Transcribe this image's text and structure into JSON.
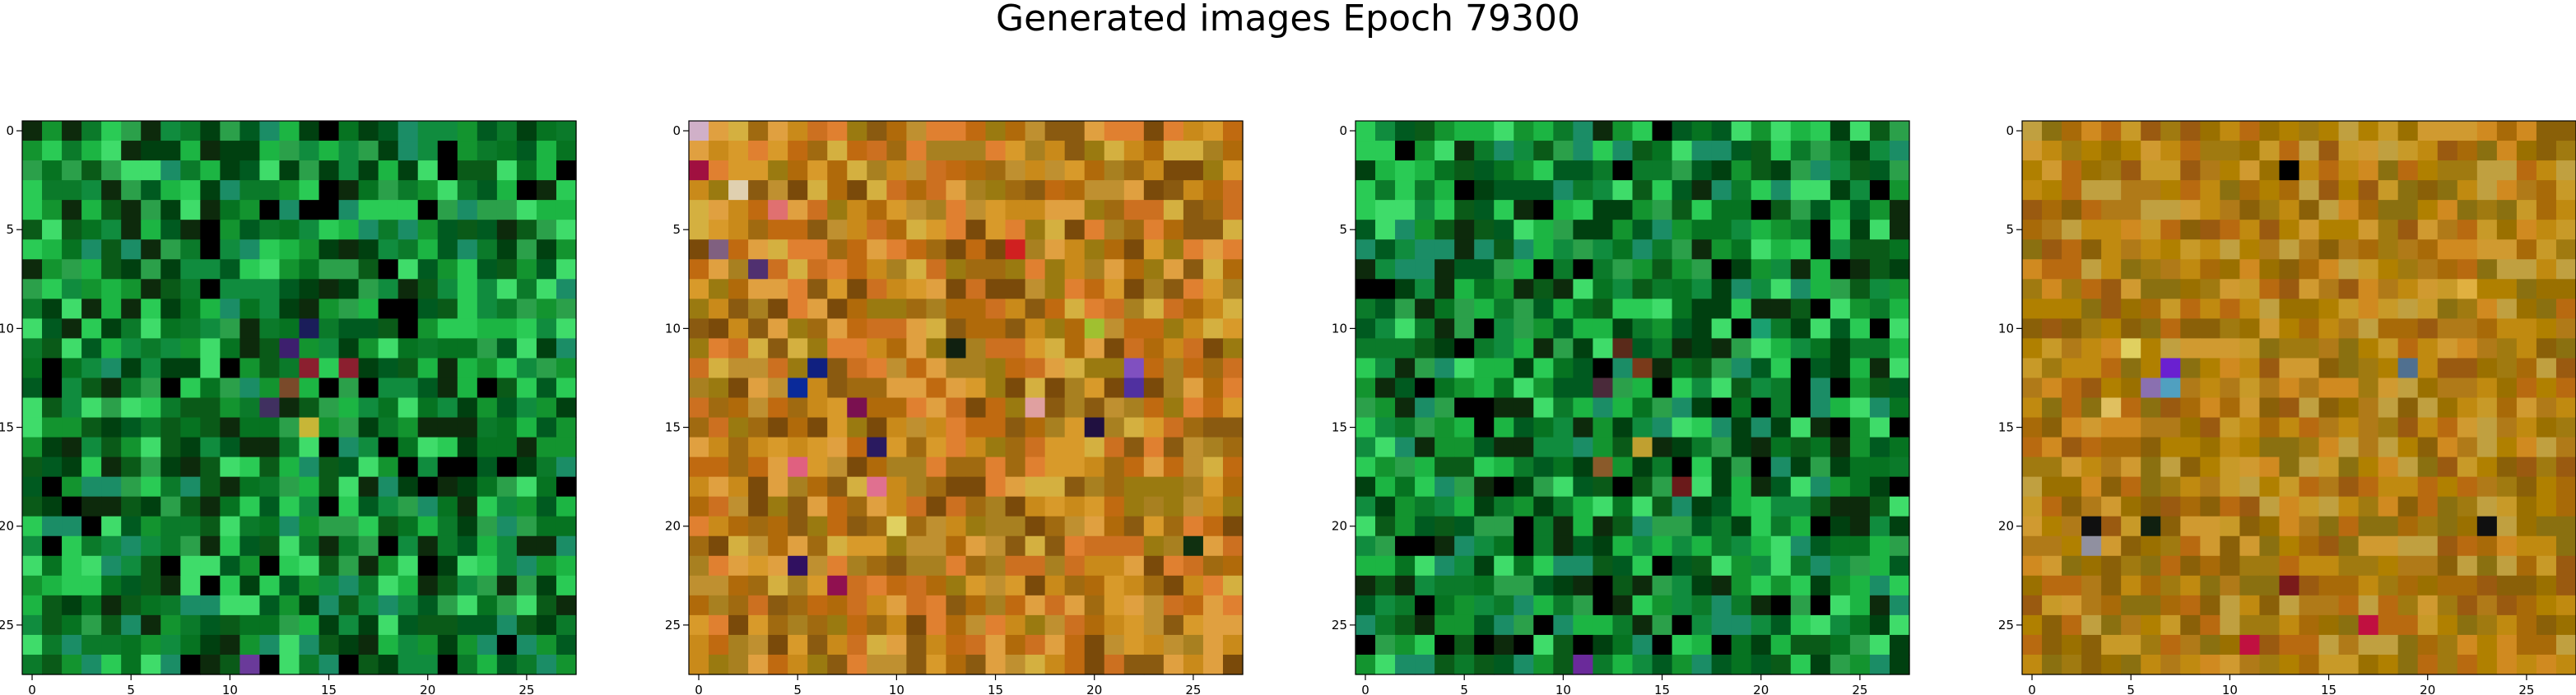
{
  "figure": {
    "title": "Generated images Epoch 79300"
  },
  "chart_data": [
    {
      "type": "heatmap",
      "grid_size": [
        28,
        28
      ],
      "x_ticks": [
        0,
        5,
        10,
        15,
        20,
        25
      ],
      "y_ticks": [
        0,
        5,
        10,
        15,
        20,
        25
      ],
      "xlim": [
        -0.5,
        27.5
      ],
      "ylim": [
        27.5,
        -0.5
      ],
      "grid": false,
      "palette": [
        "#0b7a2a",
        "#13942f",
        "#067321",
        "#1cb543",
        "#0a5a18",
        "#004010",
        "#0d2a0c",
        "#000000",
        "#2acb55",
        "#108c3e",
        "#3fdc6a",
        "#005a20",
        "#1b8d66",
        "#2ba04a"
      ],
      "accent_pixels": [
        [
          10,
          14,
          "#1a1d5a"
        ],
        [
          11,
          13,
          "#3d1f6e"
        ],
        [
          12,
          14,
          "#8b1f2f"
        ],
        [
          13,
          13,
          "#7a4a2a"
        ],
        [
          14,
          12,
          "#403060"
        ],
        [
          15,
          14,
          "#c7b637"
        ],
        [
          12,
          16,
          "#8b1f2f"
        ],
        [
          27,
          11,
          "#6a3a9a"
        ]
      ]
    },
    {
      "type": "heatmap",
      "grid_size": [
        28,
        28
      ],
      "x_ticks": [
        0,
        5,
        10,
        15,
        20,
        25
      ],
      "y_ticks": [
        0,
        5,
        10,
        15,
        20,
        25
      ],
      "xlim": [
        -0.5,
        27.5
      ],
      "ylim": [
        27.5,
        -0.5
      ],
      "grid": false,
      "palette": [
        "#b06a0a",
        "#c98a1a",
        "#a06a10",
        "#d89a2a",
        "#8a5a10",
        "#e0a040",
        "#c06a10",
        "#9a7a10",
        "#d4b040",
        "#e08030",
        "#7a4a0a",
        "#bf9030",
        "#cc7020",
        "#a88020"
      ],
      "accent_pixels": [
        [
          0,
          0,
          "#d0b0c8"
        ],
        [
          2,
          0,
          "#a01040"
        ],
        [
          3,
          2,
          "#e0d0b0"
        ],
        [
          4,
          4,
          "#e07070"
        ],
        [
          6,
          1,
          "#806080"
        ],
        [
          7,
          3,
          "#503070"
        ],
        [
          12,
          6,
          "#102080"
        ],
        [
          13,
          5,
          "#0a2a9a"
        ],
        [
          14,
          8,
          "#7a1050"
        ],
        [
          17,
          5,
          "#e06080"
        ],
        [
          18,
          9,
          "#e07090"
        ],
        [
          22,
          5,
          "#301060"
        ],
        [
          23,
          7,
          "#901050"
        ],
        [
          12,
          22,
          "#8050c0"
        ],
        [
          13,
          22,
          "#5030a0"
        ],
        [
          15,
          20,
          "#201040"
        ],
        [
          10,
          20,
          "#a0c030"
        ],
        [
          14,
          17,
          "#e0a0a0"
        ],
        [
          6,
          16,
          "#d02020"
        ],
        [
          11,
          13,
          "#102010"
        ],
        [
          20,
          10,
          "#e0d060"
        ],
        [
          16,
          9,
          "#2a1a60"
        ],
        [
          21,
          25,
          "#103010"
        ]
      ]
    },
    {
      "type": "heatmap",
      "grid_size": [
        28,
        28
      ],
      "x_ticks": [
        0,
        5,
        10,
        15,
        20,
        25
      ],
      "y_ticks": [
        0,
        5,
        10,
        15,
        20,
        25
      ],
      "xlim": [
        -0.5,
        27.5
      ],
      "ylim": [
        27.5,
        -0.5
      ],
      "grid": false,
      "palette": [
        "#0b7a2a",
        "#13942f",
        "#067321",
        "#1cb543",
        "#0a5a18",
        "#004010",
        "#0d2a0c",
        "#000000",
        "#2acb55",
        "#108c3e",
        "#3fdc6a",
        "#005a20",
        "#1b8d66",
        "#2ba04a"
      ],
      "accent_pixels": [
        [
          11,
          13,
          "#5a2a1a"
        ],
        [
          12,
          14,
          "#7a3a1a"
        ],
        [
          13,
          12,
          "#4a2a3a"
        ],
        [
          16,
          14,
          "#c0a030"
        ],
        [
          17,
          12,
          "#8a5a2a"
        ],
        [
          18,
          16,
          "#6a1a1a"
        ],
        [
          27,
          11,
          "#6a2a9a"
        ],
        [
          10,
          20,
          "#1aa070"
        ]
      ]
    },
    {
      "type": "heatmap",
      "grid_size": [
        28,
        28
      ],
      "x_ticks": [
        0,
        5,
        10,
        15,
        20,
        25
      ],
      "y_ticks": [
        0,
        5,
        10,
        15,
        20,
        25
      ],
      "xlim": [
        -0.5,
        27.5
      ],
      "ylim": [
        27.5,
        -0.5
      ],
      "grid": false,
      "palette": [
        "#a86a08",
        "#c08a10",
        "#9a7000",
        "#b07a18",
        "#c89a28",
        "#8a6008",
        "#d08a20",
        "#b08000",
        "#9a5a10",
        "#c0a040",
        "#a07a10",
        "#d09a30",
        "#b86a10",
        "#8a7010"
      ],
      "accent_pixels": [
        [
          12,
          7,
          "#6a20d0"
        ],
        [
          13,
          7,
          "#50a0c0"
        ],
        [
          13,
          6,
          "#8a70b0"
        ],
        [
          12,
          19,
          "#507090"
        ],
        [
          11,
          5,
          "#e0d060"
        ],
        [
          14,
          4,
          "#e0c060"
        ],
        [
          2,
          13,
          "#000000"
        ],
        [
          20,
          6,
          "#102010"
        ],
        [
          20,
          3,
          "#101010"
        ],
        [
          20,
          23,
          "#101010"
        ],
        [
          21,
          3,
          "#9090a0"
        ],
        [
          23,
          13,
          "#7a1a1a"
        ],
        [
          25,
          17,
          "#c01040"
        ],
        [
          26,
          11,
          "#c01040"
        ],
        [
          8,
          22,
          "#e0b040"
        ]
      ]
    }
  ]
}
